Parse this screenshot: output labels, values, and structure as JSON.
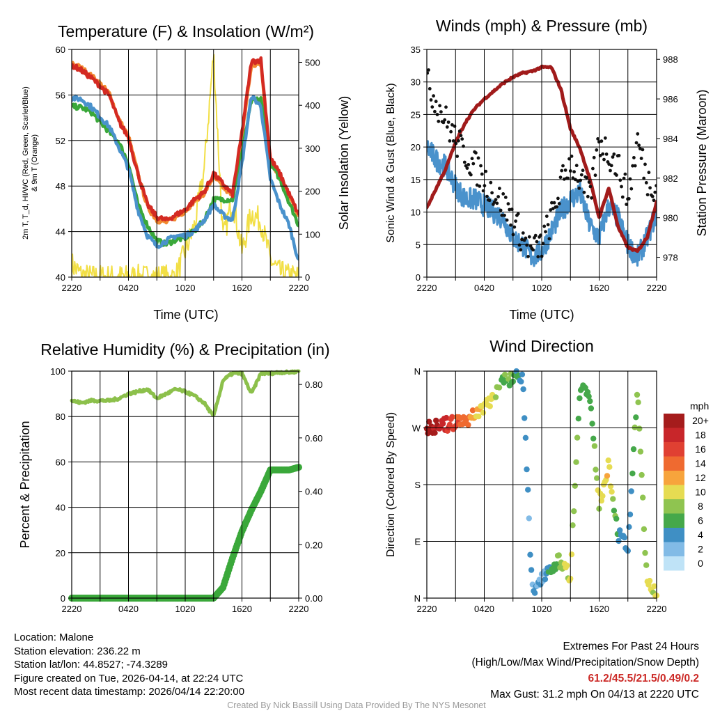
{
  "panels": {
    "temp": {
      "title": "Temperature (F) & Insolation (W/m²)",
      "ylabel_lines": [
        "2m T, T_d, HI/WC (Red, Green, Scarlet/Blue)",
        "& 9m T (Orange)"
      ],
      "ylabel_right": "Solar Insolation (Yellow)",
      "xlabel": "Time (UTC)",
      "x_ticks": [
        "2220",
        "0420",
        "1020",
        "1620",
        "2220"
      ],
      "y_ticks": [
        "40",
        "44",
        "48",
        "52",
        "56",
        "60"
      ],
      "y2_ticks": [
        "0",
        "100",
        "200",
        "300",
        "400",
        "500"
      ]
    },
    "wind": {
      "title": "Winds (mph) & Pressure (mb)",
      "ylabel": "Sonic Wind & Gust (Blue, Black)",
      "ylabel_right": "Station Pressure (Maroon)",
      "xlabel": "Time (UTC)",
      "x_ticks": [
        "2220",
        "0420",
        "1020",
        "1620",
        "2220"
      ],
      "y_ticks": [
        "0",
        "5",
        "10",
        "15",
        "20",
        "25",
        "30",
        "35"
      ],
      "y2_ticks": [
        "978",
        "980",
        "982",
        "984",
        "986",
        "988"
      ]
    },
    "rh": {
      "title": "Relative Humidity (%) & Precipitation (in)",
      "ylabel": "Percent & Precipitation",
      "x_ticks": [
        "2220",
        "0420",
        "1020",
        "1620",
        "2220"
      ],
      "y_ticks": [
        "0",
        "20",
        "40",
        "60",
        "80",
        "100"
      ],
      "y2_ticks": [
        "0.00",
        "0.20",
        "0.40",
        "0.60",
        "0.80"
      ]
    },
    "dir": {
      "title": "Wind Direction",
      "ylabel": "Direction (Colored By Speed)",
      "x_ticks": [
        "2220",
        "0420",
        "1020",
        "1620",
        "2220"
      ],
      "y_ticks": [
        "N",
        "E",
        "S",
        "W",
        "N"
      ],
      "legend_title": "mph",
      "legend_labels": [
        "20+",
        "18",
        "16",
        "14",
        "12",
        "10",
        "8",
        "6",
        "4",
        "2",
        "0"
      ],
      "legend_colors": [
        "#a51c1c",
        "#c8262a",
        "#e04032",
        "#ef6a30",
        "#f7a43c",
        "#e6dc52",
        "#8fc450",
        "#45a84a",
        "#3f8fc4",
        "#82bbe6",
        "#bfe3f7"
      ]
    }
  },
  "chart_data": [
    {
      "type": "line",
      "title": "Temperature (F) & Insolation (W/m²)",
      "xlabel": "Time (UTC)",
      "ylabel": "2m T, Td, HI/WC & 9m T",
      "ylim": [
        40,
        62
      ],
      "y2label": "Solar Insolation (Yellow)",
      "y2lim": [
        0,
        530
      ],
      "x_hours": [
        0,
        1,
        2,
        3,
        4,
        5,
        6,
        7,
        8,
        9,
        10,
        11,
        12,
        13,
        14,
        15,
        16,
        17,
        18,
        19,
        20,
        21,
        22,
        23,
        24
      ],
      "series": [
        {
          "name": "2m Temperature",
          "color": "#d42a22",
          "axis": "left",
          "values": [
            60.5,
            60,
            59.3,
            58.5,
            57.5,
            55,
            53.5,
            50,
            47,
            45.8,
            45.5,
            46,
            46.5,
            47.5,
            48.2,
            50,
            49,
            48,
            54,
            60.8,
            61,
            51.5,
            50,
            48,
            46
          ]
        },
        {
          "name": "9m Temperature",
          "color": "#f28a30",
          "axis": "left",
          "values": [
            60.7,
            60.2,
            59.5,
            58.7,
            57.7,
            55.2,
            53.6,
            50,
            46.8,
            45.5,
            45.3,
            45.8,
            46.4,
            47.4,
            48.1,
            49.7,
            48.7,
            47.8,
            53.7,
            60.4,
            60.6,
            51.2,
            49.8,
            47.8,
            45.8
          ]
        },
        {
          "name": "Dew Point",
          "color": "#3aa83a",
          "axis": "left",
          "values": [
            56.5,
            56.4,
            56,
            55,
            54,
            53,
            51,
            47,
            45,
            43.5,
            43.2,
            43.6,
            43.8,
            44.5,
            45.5,
            47.5,
            47.5,
            47.5,
            52,
            57,
            57.2,
            51,
            49.5,
            47.2,
            45
          ]
        },
        {
          "name": "HI/WC",
          "color": "#4a92cc",
          "axis": "left",
          "values": [
            57.3,
            57.2,
            56.5,
            55.5,
            54.5,
            52.5,
            50.5,
            46.5,
            44,
            43,
            43.5,
            44,
            44,
            44.5,
            45.5,
            47,
            46,
            45.5,
            51,
            57.5,
            56.5,
            49.5,
            47,
            45,
            41.5
          ]
        },
        {
          "name": "Solar Insolation",
          "color": "#f2df46",
          "axis": "right",
          "values": [
            30,
            5,
            0,
            0,
            0,
            0,
            0,
            0,
            0,
            0,
            0,
            0,
            60,
            120,
            250,
            520,
            90,
            180,
            60,
            150,
            130,
            40,
            10,
            2,
            0
          ]
        }
      ]
    },
    {
      "type": "line",
      "title": "Winds (mph) & Pressure (mb)",
      "xlabel": "Time (UTC)",
      "ylabel": "Sonic Wind & Gust (Blue, Black)",
      "ylim": [
        0,
        35
      ],
      "y2label": "Station Pressure (Maroon)",
      "y2lim": [
        977,
        988.5
      ],
      "x_hours": [
        0,
        1,
        2,
        3,
        4,
        5,
        6,
        7,
        8,
        9,
        10,
        11,
        12,
        13,
        14,
        15,
        16,
        17,
        18,
        19,
        20,
        21,
        22,
        23,
        24
      ],
      "series": [
        {
          "name": "Sonic Wind",
          "color": "#4a92cc",
          "axis": "left",
          "values": [
            20,
            18,
            17,
            14,
            12,
            12,
            11,
            10,
            9,
            6,
            5,
            3,
            4,
            7,
            10,
            12,
            13,
            8,
            6,
            11,
            9,
            5,
            3,
            6,
            10
          ]
        },
        {
          "name": "Gust",
          "color": "#111111",
          "axis": "left",
          "mark": "dot",
          "values": [
            30,
            27,
            24,
            21,
            19,
            17,
            15,
            13,
            11,
            9,
            6,
            4,
            5,
            9,
            14,
            18,
            15,
            12,
            21,
            19,
            17,
            12,
            21,
            15,
            14
          ]
        },
        {
          "name": "Station Pressure",
          "color": "#a11b1b",
          "axis": "right",
          "values": [
            980.5,
            981.5,
            982.5,
            983.8,
            984.8,
            985.5,
            986,
            986.4,
            986.8,
            987.1,
            987.3,
            987.4,
            987.6,
            987.6,
            986.5,
            984.5,
            983.5,
            982,
            980,
            981.5,
            979.5,
            978.5,
            978.3,
            979,
            980.8
          ]
        }
      ]
    },
    {
      "type": "line",
      "title": "Relative Humidity (%) & Precipitation (in)",
      "ylabel": "Percent & Precipitation",
      "ylim": [
        0,
        100
      ],
      "y2lim": [
        0,
        0.85
      ],
      "x_hours": [
        0,
        1,
        2,
        3,
        4,
        5,
        6,
        7,
        8,
        9,
        10,
        11,
        12,
        13,
        14,
        15,
        16,
        17,
        18,
        19,
        20,
        21,
        22,
        23,
        24
      ],
      "series": [
        {
          "name": "Relative Humidity",
          "color": "#8cc04b",
          "axis": "left",
          "values": [
            87,
            86,
            87,
            87,
            87,
            88,
            90,
            91,
            92,
            88,
            90,
            92,
            91,
            89,
            86,
            80,
            96,
            99,
            99,
            90,
            99,
            99,
            99.5,
            99.5,
            100
          ]
        },
        {
          "name": "Precipitation",
          "color": "#3aa83a",
          "axis": "right",
          "mark": "dot",
          "values": [
            0,
            0,
            0,
            0,
            0,
            0,
            0,
            0,
            0,
            0,
            0,
            0,
            0,
            0,
            0,
            0,
            0.04,
            0.15,
            0.25,
            0.33,
            0.4,
            0.48,
            0.48,
            0.48,
            0.49
          ]
        }
      ]
    },
    {
      "type": "scatter",
      "title": "Wind Direction",
      "ylabel": "Direction (Colored By Speed)",
      "ylim": [
        0,
        360
      ],
      "y_categories": [
        "N",
        "E",
        "S",
        "W",
        "N"
      ],
      "x_hours": [
        0,
        1,
        2,
        3,
        4,
        5,
        6,
        7,
        8,
        9,
        10,
        11,
        12,
        13,
        14,
        15,
        16,
        17,
        18,
        19,
        20,
        21,
        22,
        23,
        24
      ],
      "series": [
        {
          "name": "Direction",
          "values": [
            270,
            272,
            275,
            278,
            282,
            290,
            305,
            320,
            345,
            350,
            355,
            10,
            35,
            50,
            60,
            35,
            340,
            320,
            150,
            210,
            100,
            80,
            330,
            20,
            10
          ]
        },
        {
          "name": "Speed",
          "values": [
            20,
            19,
            18,
            16,
            14,
            12,
            10,
            9,
            7,
            6,
            4,
            3,
            3,
            5,
            8,
            10,
            6,
            6,
            9,
            11,
            5,
            4,
            8,
            9,
            10
          ]
        }
      ]
    }
  ],
  "info": {
    "location": "Location: Malone",
    "elevation": "Station elevation: 236.22 m",
    "latlon": "Station lat/lon: 44.8527; -74.3289",
    "created": "Figure created on Tue, 2026-04-14, at 22:24 UTC",
    "recent": "Most recent data timestamp: 2026/04/14 22:20:00"
  },
  "extremes": {
    "heading": "Extremes For Past 24 Hours",
    "subheading": "(High/Low/Max Wind/Precipitation/Snow Depth)",
    "values": "61.2/45.5/21.5/0.49/0.2",
    "gust": "Max Gust: 31.2 mph On 04/13 at 2220 UTC"
  },
  "credit": "Created By Nick Bassill Using Data Provided By The NYS Mesonet"
}
